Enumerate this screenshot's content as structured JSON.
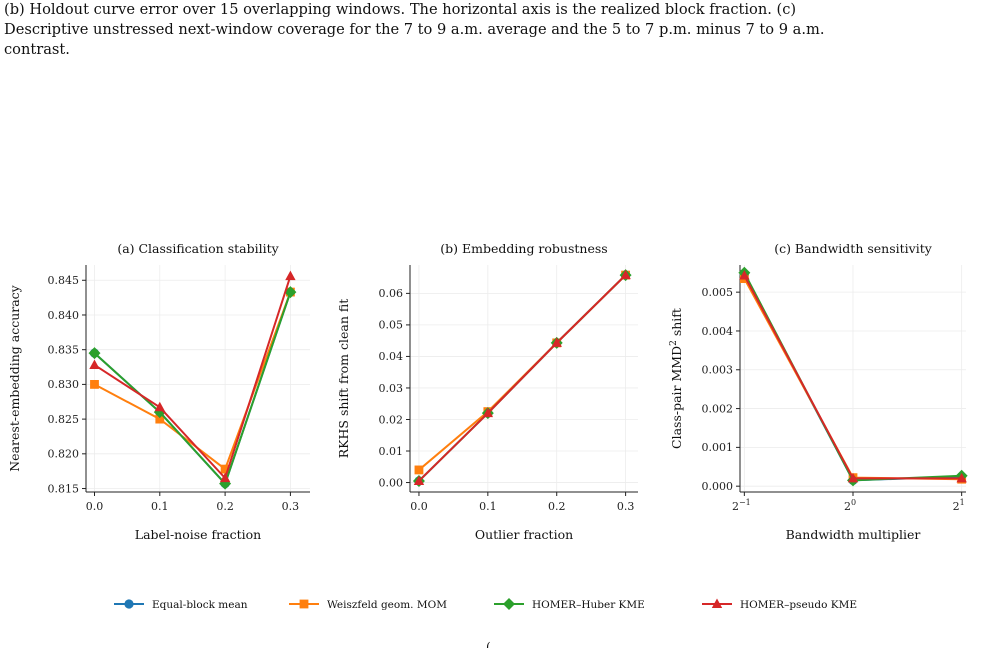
{
  "caption": {
    "line1": "(b) Holdout curve error over 15 overlapping windows. The horizontal axis is the realized block fraction. (c)",
    "line2": "Descriptive unstressed next-window coverage for the 7 to 9 a.m. average and the 5 to 7 p.m. minus 7 to 9 a.m.",
    "line3": "contrast."
  },
  "colors": {
    "Equal-block mean": "#1f77b4",
    "Weiszfeld geom. MOM": "#ff7f0e",
    "HOMER–Huber KME": "#2ca02c",
    "HOMER–pseudo KME": "#d62728"
  },
  "chart_data": [
    {
      "type": "line",
      "title": "(a) Classification stability",
      "xlabel": "Label-noise fraction",
      "ylabel": "Nearest-embedding accuracy",
      "x": [
        0.0,
        0.1,
        0.2,
        0.3
      ],
      "xticks": [
        "0.0",
        "0.1",
        "0.2",
        "0.3"
      ],
      "xlim": [
        -0.013,
        0.33
      ],
      "ylim": [
        0.8145,
        0.8472
      ],
      "yticks": [
        0.815,
        0.82,
        0.825,
        0.83,
        0.835,
        0.84,
        0.845
      ],
      "ytick_labels": [
        "0.815",
        "0.820",
        "0.825",
        "0.830",
        "0.835",
        "0.840",
        "0.845"
      ],
      "grid": true,
      "series": [
        {
          "name": "Equal-block mean",
          "values": [
            0.8345,
            0.826,
            0.8157,
            0.8433
          ]
        },
        {
          "name": "Weiszfeld geom. MOM",
          "values": [
            0.83,
            0.825,
            0.8178,
            0.8433
          ]
        },
        {
          "name": "HOMER–Huber KME",
          "values": [
            0.8345,
            0.826,
            0.8157,
            0.8433
          ]
        },
        {
          "name": "HOMER–pseudo KME",
          "values": [
            0.8328,
            0.8267,
            0.8165,
            0.8456
          ]
        }
      ]
    },
    {
      "type": "line",
      "title": "(b) Embedding robustness",
      "xlabel": "Outlier fraction",
      "ylabel": "RKHS shift from clean fit",
      "x": [
        0.0,
        0.1,
        0.2,
        0.3
      ],
      "xticks": [
        "0.0",
        "0.1",
        "0.2",
        "0.3"
      ],
      "xlim": [
        -0.013,
        0.318
      ],
      "ylim": [
        -0.003,
        0.069
      ],
      "yticks": [
        0.0,
        0.01,
        0.02,
        0.03,
        0.04,
        0.05,
        0.06
      ],
      "ytick_labels": [
        "0.00",
        "0.01",
        "0.02",
        "0.03",
        "0.04",
        "0.05",
        "0.06"
      ],
      "grid": true,
      "series": [
        {
          "name": "Equal-block mean",
          "values": [
            0.0005,
            0.022,
            0.0443,
            0.0658
          ]
        },
        {
          "name": "Weiszfeld geom. MOM",
          "values": [
            0.004,
            0.0225,
            0.0443,
            0.0658
          ]
        },
        {
          "name": "HOMER–Huber KME",
          "values": [
            0.0005,
            0.022,
            0.0443,
            0.0658
          ]
        },
        {
          "name": "HOMER–pseudo KME",
          "values": [
            0.0005,
            0.022,
            0.0443,
            0.0658
          ]
        }
      ]
    },
    {
      "type": "line",
      "title": "(c) Bandwidth sensitivity",
      "xlabel": "Bandwidth multiplier",
      "ylabel": "Class-pair MMD² shift",
      "ylabel_base": "Class-pair MMD",
      "ylabel_sup": "2",
      "ylabel_rest": " shift",
      "x": [
        -1,
        0,
        1
      ],
      "x_scale": "log2",
      "xticks": [
        "2",
        "2",
        "2"
      ],
      "xtick_exponents": [
        "−1",
        "0",
        "1"
      ],
      "xlim": [
        -1.04,
        1.04
      ],
      "ylim": [
        -0.00015,
        0.0057
      ],
      "yticks": [
        0.0,
        0.001,
        0.002,
        0.003,
        0.004,
        0.005
      ],
      "ytick_labels": [
        "0.000",
        "0.001",
        "0.002",
        "0.003",
        "0.004",
        "0.005"
      ],
      "grid": true,
      "series": [
        {
          "name": "Equal-block mean",
          "values": [
            0.00545,
            0.00015,
            0.00025
          ]
        },
        {
          "name": "Weiszfeld geom. MOM",
          "values": [
            0.00535,
            0.00022,
            0.00018
          ]
        },
        {
          "name": "HOMER–Huber KME",
          "values": [
            0.0055,
            0.00015,
            0.00027
          ]
        },
        {
          "name": "HOMER–pseudo KME",
          "values": [
            0.00543,
            0.0002,
            0.0002
          ]
        }
      ]
    }
  ],
  "legend": {
    "placement": "bottom-center",
    "entries": [
      {
        "label": "Equal-block mean",
        "marker": "circle"
      },
      {
        "label": "Weiszfeld geom. MOM",
        "marker": "square"
      },
      {
        "label": "HOMER–Huber KME",
        "marker": "diamond"
      },
      {
        "label": "HOMER–pseudo KME",
        "marker": "triangle"
      }
    ]
  }
}
